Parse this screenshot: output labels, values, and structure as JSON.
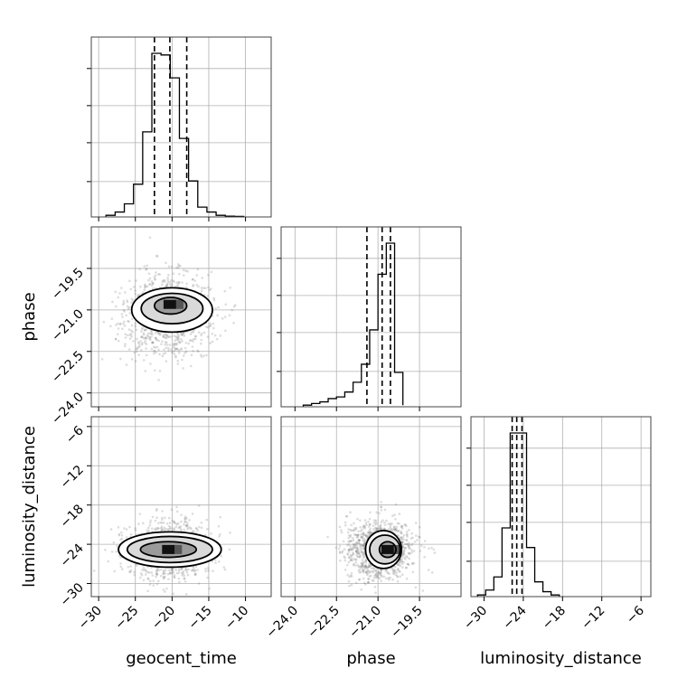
{
  "chart_data": {
    "type": "corner",
    "parameters": [
      "geocent_time",
      "phase",
      "luminosity_distance"
    ],
    "ranges": {
      "geocent_time": [
        -31.0,
        -6.5
      ],
      "phase": [
        -24.5,
        -18.0
      ],
      "luminosity_distance": [
        -32.0,
        -4.5
      ]
    },
    "ticks": {
      "geocent_time": [
        -30,
        -25,
        -20,
        -15,
        -10
      ],
      "phase": [
        -24.0,
        -22.5,
        -21.0,
        -19.5
      ],
      "luminosity_distance": [
        -30,
        -24,
        -18,
        -12,
        -6
      ]
    },
    "tick_labels": {
      "geocent_time": [
        "−30",
        "−25",
        "−20",
        "−15",
        "−10"
      ],
      "phase": [
        "−24.0",
        "−22.5",
        "−21.0",
        "−19.5"
      ],
      "luminosity_distance": [
        "−30",
        "−24",
        "−18",
        "−12",
        "−6"
      ]
    },
    "histograms": {
      "geocent_time": {
        "bin_edges": [
          -29.0,
          -27.75,
          -26.5,
          -25.25,
          -24.0,
          -22.75,
          -21.5,
          -20.25,
          -19.0,
          -17.75,
          -16.5,
          -15.25,
          -14.0,
          -12.75,
          -11.5,
          -10.25
        ],
        "counts": [
          1,
          3,
          8,
          20,
          52,
          100,
          99,
          85,
          48,
          22,
          6,
          3,
          1,
          0.5,
          0.3
        ],
        "quantiles": [
          -22.4,
          -20.3,
          -18.0
        ]
      },
      "phase": {
        "bin_edges": [
          -23.7,
          -23.4,
          -23.1,
          -22.8,
          -22.5,
          -22.2,
          -21.9,
          -21.6,
          -21.3,
          -21.0,
          -20.7,
          -20.4,
          -20.1
        ],
        "counts": [
          1,
          2,
          3,
          5,
          6,
          9,
          15,
          26,
          47,
          81,
          100,
          21,
          1
        ],
        "quantiles": [
          -21.4,
          -20.85,
          -20.55
        ]
      },
      "luminosity_distance": {
        "bin_edges": [
          -31.0,
          -29.75,
          -28.5,
          -27.25,
          -26.0,
          -24.75,
          -23.5,
          -22.25,
          -21.0,
          -19.75,
          -18.5
        ],
        "counts": [
          1,
          4,
          12,
          42,
          100,
          100,
          30,
          9,
          3,
          1
        ],
        "quantiles": [
          -25.7,
          -25.0,
          -24.2
        ]
      }
    },
    "joint": [
      {
        "x": "geocent_time",
        "y": "phase",
        "mean": [
          -20.5,
          -21.2
        ],
        "std": [
          2.8,
          0.75
        ],
        "peak": [
          -20.3,
          -20.8
        ],
        "contours": [
          {
            "cx": -20.2,
            "cy": -20.85,
            "rx": 2.2,
            "ry": 0.3
          },
          {
            "cx": -20.0,
            "cy": -20.95,
            "rx": 4.2,
            "ry": 0.55
          },
          {
            "cx": -20.0,
            "cy": -21.0,
            "rx": 5.5,
            "ry": 0.8
          }
        ]
      },
      {
        "x": "geocent_time",
        "y": "luminosity_distance",
        "mean": [
          -20.5,
          -24.8
        ],
        "std": [
          2.8,
          2.2
        ],
        "peak": [
          -20.5,
          -24.8
        ],
        "contours": [
          {
            "cx": -20.5,
            "cy": -24.8,
            "rx": 3.8,
            "ry": 1.2
          },
          {
            "cx": -20.3,
            "cy": -24.8,
            "rx": 5.8,
            "ry": 2.0
          },
          {
            "cx": -20.3,
            "cy": -24.8,
            "rx": 7.0,
            "ry": 2.7
          }
        ]
      },
      {
        "x": "phase",
        "y": "luminosity_distance",
        "mean": [
          -21.0,
          -24.8
        ],
        "std": [
          0.6,
          2.2
        ],
        "peak": [
          -20.65,
          -24.8
        ],
        "contours": [
          {
            "cx": -20.65,
            "cy": -24.8,
            "rx": 0.3,
            "ry": 1.2
          },
          {
            "cx": -20.75,
            "cy": -24.8,
            "rx": 0.55,
            "ry": 2.2
          },
          {
            "cx": -20.8,
            "cy": -24.8,
            "rx": 0.65,
            "ry": 2.9
          }
        ]
      }
    ],
    "axis_labels": {
      "x": [
        "geocent_time",
        "phase",
        "luminosity_distance"
      ],
      "y": [
        "phase",
        "luminosity_distance"
      ]
    }
  }
}
